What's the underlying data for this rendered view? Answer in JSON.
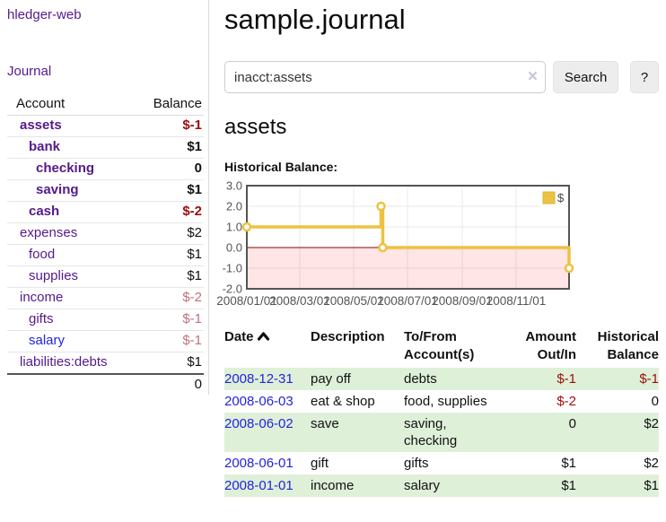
{
  "app_title": "hledger-web",
  "sidebar": {
    "journal_link": "Journal",
    "table": {
      "account_header": "Account",
      "balance_header": "Balance",
      "rows": [
        {
          "account": "assets",
          "balance": "$-1"
        },
        {
          "account": "bank",
          "balance": "$1"
        },
        {
          "account": "checking",
          "balance": "0"
        },
        {
          "account": "saving",
          "balance": "$1"
        },
        {
          "account": "cash",
          "balance": "$-2"
        },
        {
          "account": "expenses",
          "balance": "$2"
        },
        {
          "account": "food",
          "balance": "$1"
        },
        {
          "account": "supplies",
          "balance": "$1"
        },
        {
          "account": "income",
          "balance": "$-2"
        },
        {
          "account": "gifts",
          "balance": "$-1"
        },
        {
          "account": "salary",
          "balance": "$-1"
        },
        {
          "account": "liabilities:debts",
          "balance": "$1"
        }
      ],
      "total": "0"
    }
  },
  "main": {
    "title": "sample.journal",
    "search": {
      "value": "inacct:assets",
      "clear_icon": "×",
      "button_label": "Search",
      "help_label": "?"
    },
    "account_heading": "assets",
    "section_label": "Historical Balance:"
  },
  "chart_data": {
    "type": "line",
    "step": true,
    "title": "Historical Balance",
    "series": [
      {
        "name": "$",
        "color": "#edc240",
        "points": [
          [
            "2008/01/01",
            1
          ],
          [
            "2008/06/01",
            2
          ],
          [
            "2008/06/03",
            0
          ],
          [
            "2008/12/31",
            -1
          ]
        ]
      }
    ],
    "x_range": [
      "2008/01/01",
      "2008/12/31"
    ],
    "x_ticks": [
      "2008/01/01",
      "2008/03/01",
      "2008/05/01",
      "2008/07/01",
      "2008/09/01",
      "2008/11/01"
    ],
    "y_ticks": [
      "3.0",
      "2.0",
      "1.0",
      "0.0",
      "-1.0",
      "-2.0"
    ],
    "ylim": [
      -2,
      3
    ],
    "grid": true,
    "legend": {
      "label": "$",
      "position": "top-right"
    },
    "negative_region_fill": "rgba(255,0,0,0.10)",
    "zero_line_color": "#8b0000",
    "axis_text_color": "#545454"
  },
  "transactions": {
    "headers": {
      "date": "Date",
      "description": "Description",
      "tofrom": "To/From Account(s)",
      "amount": "Amount Out/In",
      "balance": "Historical Balance"
    },
    "rows": [
      {
        "date": "2008-12-31",
        "description": "pay off",
        "tofrom": "debts",
        "amount": "$-1",
        "balance": "$-1"
      },
      {
        "date": "2008-06-03",
        "description": "eat & shop",
        "tofrom": "food, supplies",
        "amount": "$-2",
        "balance": "0"
      },
      {
        "date": "2008-06-02",
        "description": "save",
        "tofrom": "saving, checking",
        "amount": "0",
        "balance": "$2"
      },
      {
        "date": "2008-06-01",
        "description": "gift",
        "tofrom": "gifts",
        "amount": "$1",
        "balance": "$2"
      },
      {
        "date": "2008-01-01",
        "description": "income",
        "tofrom": "salary",
        "amount": "$1",
        "balance": "$1"
      }
    ]
  }
}
